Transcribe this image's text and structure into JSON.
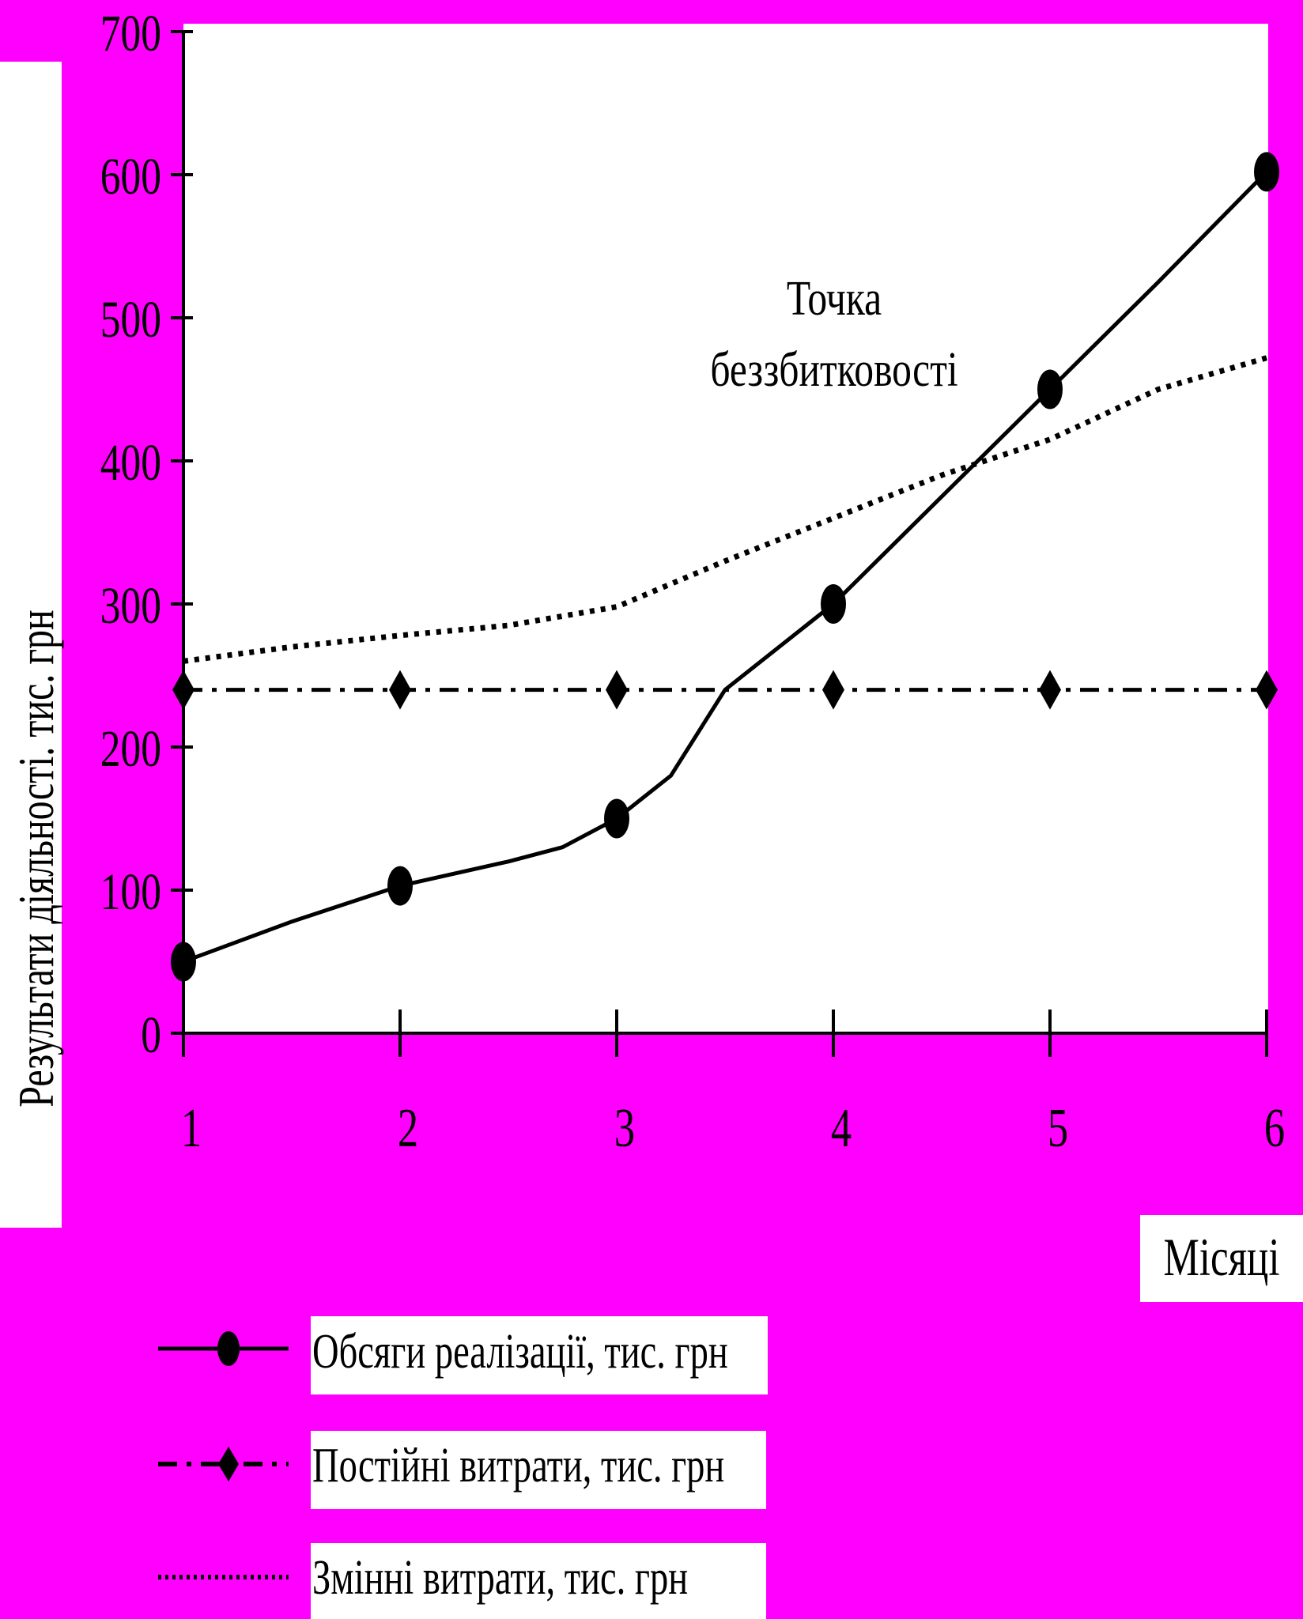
{
  "colors": {
    "background": "#ff00ff",
    "plot_area": "#ffffff",
    "ink": "#000000"
  },
  "chart_data": {
    "type": "line",
    "title": "",
    "xlabel": "Місяці",
    "ylabel": "Результати діяльності. тис. грн",
    "categories": [
      "1",
      "2",
      "3",
      "4",
      "5",
      "6"
    ],
    "x": [
      1,
      2,
      3,
      4,
      5,
      6
    ],
    "ylim": [
      0,
      700
    ],
    "yticks": [
      0,
      100,
      200,
      300,
      400,
      500,
      600,
      700
    ],
    "grid": false,
    "legend_position": "bottom-left",
    "series": [
      {
        "name": "Обсяги реалізації, тис. грн",
        "style": "solid",
        "marker": "circle",
        "x": [
          1,
          1.5,
          2,
          2.5,
          2.75,
          3,
          3.25,
          3.5,
          4,
          5,
          5.5,
          6
        ],
        "values": [
          50,
          78,
          103,
          120,
          130,
          150,
          180,
          240,
          300,
          450,
          525,
          602
        ],
        "markers_x": [
          1,
          2,
          3,
          4,
          5,
          6
        ]
      },
      {
        "name": "Постійні витрати, тис. грн",
        "style": "dashdot",
        "marker": "diamond",
        "x": [
          1,
          2,
          3,
          4,
          5,
          6
        ],
        "values": [
          240,
          240,
          240,
          240,
          240,
          240
        ],
        "markers_x": [
          1,
          2,
          3,
          4,
          5,
          6
        ]
      },
      {
        "name": "Змінні витрати, тис. грн",
        "style": "dotted",
        "marker": "none",
        "x": [
          1,
          1.5,
          2,
          2.5,
          3,
          3.5,
          4,
          4.5,
          5,
          5.5,
          6
        ],
        "values": [
          260,
          270,
          278,
          285,
          298,
          330,
          360,
          390,
          415,
          450,
          472
        ],
        "markers_x": []
      }
    ],
    "annotations": [
      {
        "text": "Точка",
        "at_x": 4.0,
        "at_y": 517
      },
      {
        "text": "беззбитковості",
        "at_x": 4.0,
        "at_y": 471
      }
    ]
  }
}
